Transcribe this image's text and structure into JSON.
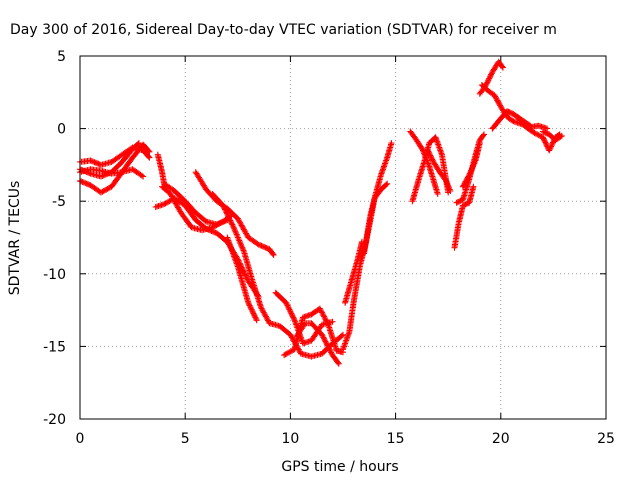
{
  "chart_data": {
    "type": "scatter",
    "title": "Day 300 of 2016, Sidereal Day-to-day VTEC variation (SDTVAR) for receiver m",
    "xlabel": "GPS time / hours",
    "ylabel": "SDTVAR / TECUs",
    "xlim": [
      0,
      25
    ],
    "ylim": [
      -20,
      5
    ],
    "xticks": [
      0,
      5,
      10,
      15,
      20,
      25
    ],
    "yticks": [
      -20,
      -15,
      -10,
      -5,
      0,
      5
    ],
    "xtick_labels": [
      "0",
      "5",
      "10",
      "15",
      "20",
      "25"
    ],
    "ytick_labels": [
      "-20",
      "-15",
      "-10",
      "-5",
      "0",
      "5"
    ],
    "grid": true,
    "legend": "none",
    "marker": "plus",
    "color": "#ff0000",
    "tracks": [
      [
        [
          0.0,
          -2.3
        ],
        [
          0.5,
          -2.2
        ],
        [
          1.0,
          -2.5
        ],
        [
          1.5,
          -2.3
        ],
        [
          2.0,
          -1.8
        ],
        [
          2.5,
          -1.3
        ],
        [
          3.0,
          -1.5
        ],
        [
          3.3,
          -2.0
        ]
      ],
      [
        [
          0.0,
          -3.0
        ],
        [
          0.5,
          -2.8
        ],
        [
          1.0,
          -2.9
        ],
        [
          1.5,
          -3.1
        ],
        [
          2.0,
          -3.0
        ],
        [
          2.5,
          -2.8
        ],
        [
          3.0,
          -3.3
        ]
      ],
      [
        [
          0.0,
          -3.6
        ],
        [
          0.5,
          -3.9
        ],
        [
          1.0,
          -4.4
        ],
        [
          1.5,
          -4.0
        ],
        [
          2.0,
          -3.0
        ],
        [
          2.5,
          -2.0
        ],
        [
          3.0,
          -1.1
        ],
        [
          3.3,
          -1.6
        ]
      ],
      [
        [
          0.0,
          -2.8
        ],
        [
          0.5,
          -3.1
        ],
        [
          1.0,
          -3.3
        ],
        [
          1.5,
          -3.0
        ],
        [
          2.0,
          -2.3
        ],
        [
          2.5,
          -1.4
        ],
        [
          2.8,
          -1.0
        ]
      ],
      [
        [
          3.7,
          -1.8
        ],
        [
          3.9,
          -3.0
        ],
        [
          4.0,
          -3.8
        ],
        [
          4.5,
          -4.3
        ],
        [
          5.0,
          -5.0
        ],
        [
          5.5,
          -5.8
        ],
        [
          6.0,
          -6.4
        ],
        [
          6.5,
          -6.6
        ],
        [
          7.0,
          -6.3
        ]
      ],
      [
        [
          3.6,
          -5.4
        ],
        [
          4.0,
          -5.2
        ],
        [
          4.5,
          -4.8
        ],
        [
          5.0,
          -5.3
        ],
        [
          5.5,
          -6.3
        ],
        [
          6.0,
          -6.9
        ],
        [
          6.5,
          -7.2
        ],
        [
          7.0,
          -7.8
        ],
        [
          7.5,
          -9.0
        ],
        [
          8.0,
          -10.5
        ],
        [
          8.5,
          -11.6
        ]
      ],
      [
        [
          3.9,
          -4.0
        ],
        [
          4.3,
          -4.5
        ],
        [
          4.8,
          -5.8
        ],
        [
          5.3,
          -6.8
        ],
        [
          5.8,
          -7.0
        ],
        [
          6.3,
          -6.8
        ],
        [
          6.8,
          -6.4
        ],
        [
          7.2,
          -6.0
        ]
      ],
      [
        [
          5.5,
          -3.0
        ],
        [
          6.0,
          -4.2
        ],
        [
          6.5,
          -5.0
        ],
        [
          7.0,
          -5.5
        ],
        [
          7.5,
          -6.2
        ],
        [
          8.0,
          -7.5
        ],
        [
          8.5,
          -8.0
        ],
        [
          9.0,
          -8.3
        ],
        [
          9.2,
          -8.7
        ]
      ],
      [
        [
          6.3,
          -4.5
        ],
        [
          6.8,
          -5.3
        ],
        [
          7.3,
          -6.8
        ],
        [
          7.8,
          -8.5
        ],
        [
          8.2,
          -10.5
        ],
        [
          8.6,
          -12.3
        ],
        [
          9.0,
          -13.4
        ],
        [
          9.5,
          -13.6
        ],
        [
          10.0,
          -14.2
        ],
        [
          10.5,
          -15.5
        ],
        [
          11.0,
          -15.7
        ],
        [
          11.5,
          -15.5
        ],
        [
          12.0,
          -14.8
        ],
        [
          12.5,
          -14.2
        ]
      ],
      [
        [
          7.0,
          -7.5
        ],
        [
          7.5,
          -9.5
        ],
        [
          8.0,
          -12.0
        ],
        [
          8.4,
          -13.2
        ]
      ],
      [
        [
          9.3,
          -11.3
        ],
        [
          9.8,
          -12.0
        ],
        [
          10.2,
          -13.2
        ],
        [
          10.6,
          -14.8
        ],
        [
          11.0,
          -14.6
        ],
        [
          11.5,
          -13.5
        ],
        [
          12.0,
          -13.3
        ]
      ],
      [
        [
          9.7,
          -15.6
        ],
        [
          10.2,
          -15.2
        ],
        [
          10.6,
          -13.0
        ],
        [
          11.0,
          -12.8
        ],
        [
          11.4,
          -12.4
        ],
        [
          11.8,
          -13.5
        ],
        [
          12.2,
          -15.3
        ],
        [
          12.5,
          -15.4
        ]
      ],
      [
        [
          10.3,
          -14.3
        ],
        [
          10.7,
          -13.4
        ],
        [
          11.0,
          -13.4
        ],
        [
          11.5,
          -14.2
        ],
        [
          12.0,
          -15.6
        ],
        [
          12.3,
          -16.2
        ]
      ],
      [
        [
          12.5,
          -15.2
        ],
        [
          12.8,
          -14.0
        ],
        [
          13.0,
          -12.0
        ],
        [
          13.3,
          -9.5
        ],
        [
          13.6,
          -7.8
        ],
        [
          14.0,
          -4.8
        ],
        [
          14.3,
          -3.2
        ],
        [
          14.6,
          -2.0
        ],
        [
          14.8,
          -1.0
        ]
      ],
      [
        [
          12.6,
          -12.0
        ],
        [
          12.9,
          -10.5
        ],
        [
          13.2,
          -9.0
        ],
        [
          13.4,
          -7.8
        ]
      ],
      [
        [
          13.5,
          -8.6
        ],
        [
          13.8,
          -6.0
        ],
        [
          14.0,
          -4.8
        ],
        [
          14.3,
          -4.2
        ],
        [
          14.6,
          -3.8
        ]
      ],
      [
        [
          15.7,
          -0.2
        ],
        [
          16.0,
          -0.8
        ],
        [
          16.3,
          -1.5
        ],
        [
          16.6,
          -2.6
        ],
        [
          17.0,
          -4.5
        ]
      ],
      [
        [
          15.8,
          -5.0
        ],
        [
          16.1,
          -3.5
        ],
        [
          16.4,
          -2.1
        ],
        [
          16.6,
          -1.0
        ],
        [
          16.9,
          -0.6
        ],
        [
          17.2,
          -1.8
        ],
        [
          17.5,
          -4.4
        ]
      ],
      [
        [
          16.5,
          -1.4
        ],
        [
          16.8,
          -2.3
        ],
        [
          17.1,
          -3.0
        ],
        [
          17.4,
          -3.6
        ],
        [
          17.6,
          -4.3
        ]
      ],
      [
        [
          17.8,
          -8.2
        ],
        [
          18.0,
          -6.5
        ],
        [
          18.2,
          -5.3
        ],
        [
          18.5,
          -5.1
        ],
        [
          18.7,
          -4.0
        ]
      ],
      [
        [
          17.9,
          -5.1
        ],
        [
          18.2,
          -4.9
        ],
        [
          18.5,
          -3.5
        ],
        [
          18.8,
          -1.8
        ],
        [
          19.0,
          -0.8
        ],
        [
          19.2,
          -0.4
        ]
      ],
      [
        [
          18.2,
          -4.0
        ],
        [
          18.5,
          -3.2
        ],
        [
          18.8,
          -2.2
        ],
        [
          19.0,
          -1.0
        ]
      ],
      [
        [
          19.0,
          2.4
        ],
        [
          19.3,
          3.0
        ],
        [
          19.6,
          3.9
        ],
        [
          19.9,
          4.6
        ],
        [
          20.1,
          4.2
        ]
      ],
      [
        [
          19.1,
          3.0
        ],
        [
          19.4,
          2.6
        ],
        [
          19.7,
          2.3
        ],
        [
          20.0,
          1.5
        ],
        [
          20.3,
          0.8
        ],
        [
          20.6,
          0.5
        ],
        [
          21.0,
          0.3
        ],
        [
          21.4,
          0.1
        ],
        [
          21.8,
          0.2
        ],
        [
          22.2,
          0.0
        ]
      ],
      [
        [
          19.6,
          0.0
        ],
        [
          20.0,
          0.7
        ],
        [
          20.3,
          1.2
        ],
        [
          20.6,
          1.0
        ],
        [
          21.0,
          0.6
        ],
        [
          21.4,
          0.2
        ]
      ],
      [
        [
          20.8,
          0.8
        ],
        [
          21.2,
          0.1
        ],
        [
          21.6,
          -0.3
        ],
        [
          22.0,
          -0.6
        ],
        [
          22.3,
          -1.5
        ],
        [
          22.6,
          -0.6
        ],
        [
          22.8,
          -0.4
        ]
      ],
      [
        [
          22.0,
          -0.2
        ],
        [
          22.3,
          -0.4
        ],
        [
          22.6,
          -0.8
        ],
        [
          22.9,
          -0.5
        ]
      ]
    ]
  }
}
